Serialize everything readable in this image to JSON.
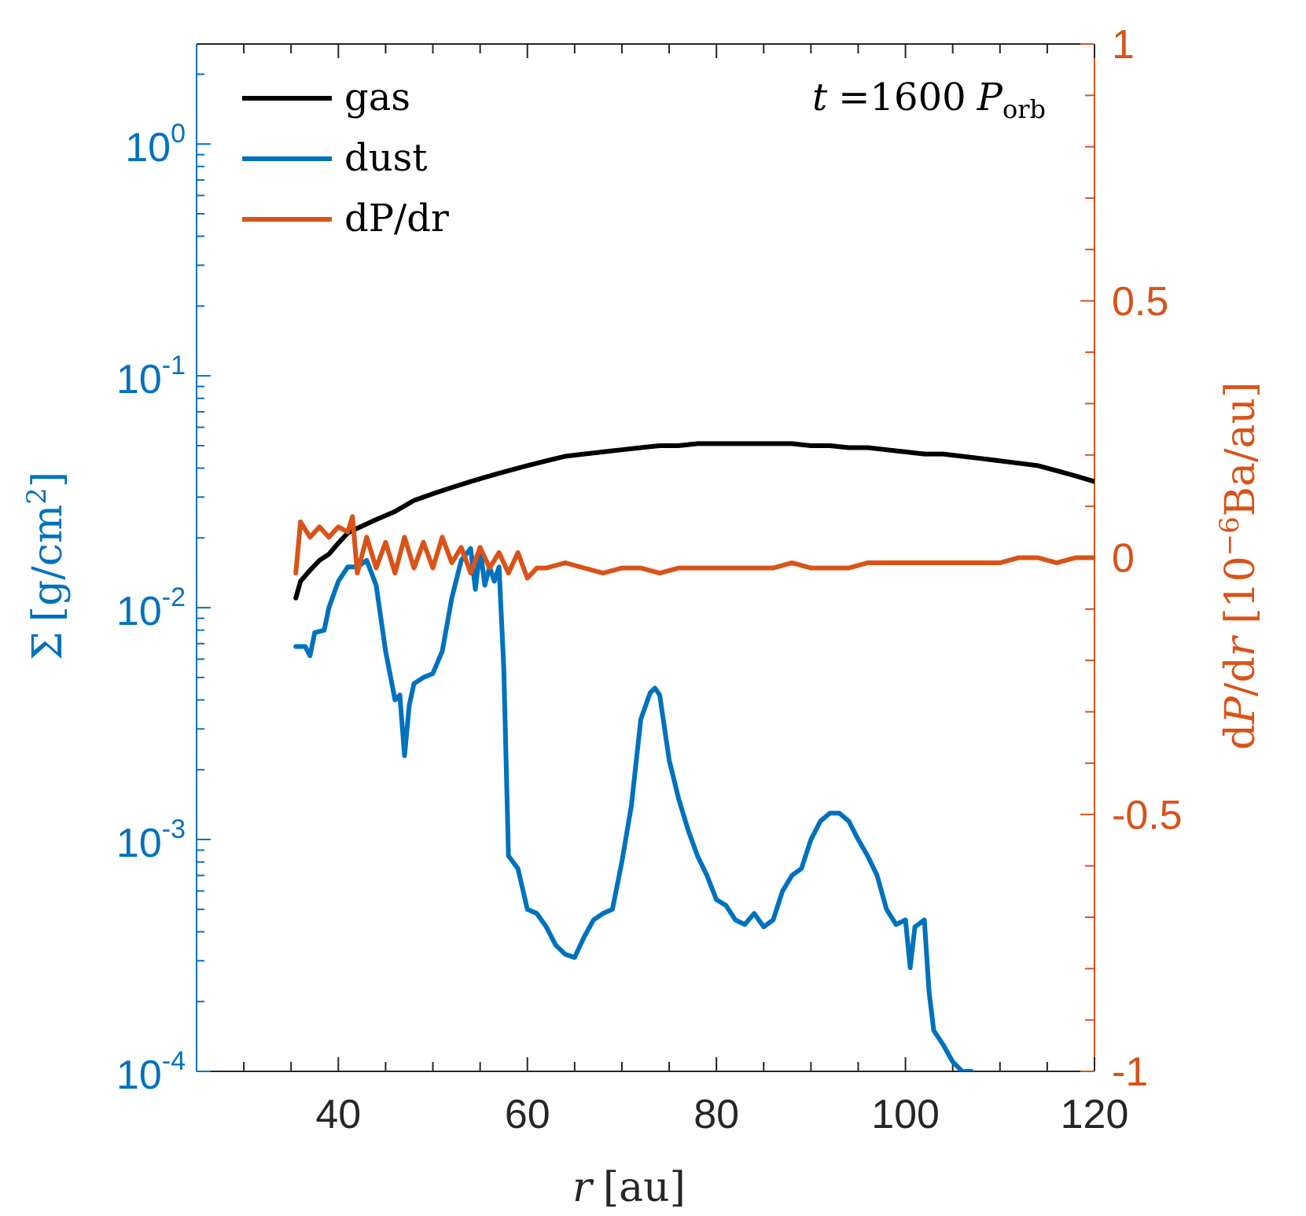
{
  "chart_data": {
    "type": "line",
    "annotation": {
      "t_symbol": "t",
      "equals": "=",
      "value": "1600",
      "p_symbol": "P",
      "p_subscript": "orb"
    },
    "xaxis": {
      "label_var": "r",
      "label_unit": "[au]",
      "range": [
        25,
        120
      ],
      "ticks": [
        40,
        60,
        80,
        100,
        120
      ],
      "tick_labels": [
        "40",
        "60",
        "80",
        "100",
        "120"
      ]
    },
    "yaxis_left": {
      "scale": "log",
      "label_symbol": "Σ",
      "label_unit_prefix": "[g/cm",
      "label_unit_sup": "2",
      "label_unit_suffix": "]",
      "range": [
        0.0001,
        2.7
      ],
      "color": "#0072BD",
      "ticks": [
        {
          "value": 1,
          "base": "10",
          "exp": "0"
        },
        {
          "value": 0.1,
          "base": "10",
          "exp": "-1"
        },
        {
          "value": 0.01,
          "base": "10",
          "exp": "-2"
        },
        {
          "value": 0.001,
          "base": "10",
          "exp": "-3"
        },
        {
          "value": 0.0001,
          "base": "10",
          "exp": "-4"
        }
      ]
    },
    "yaxis_right": {
      "scale": "linear",
      "label_prefix": "d",
      "label_var_p": "P",
      "label_mid": "/d",
      "label_var_r": "r",
      "label_unit_open": " [10",
      "label_unit_sup": "−6",
      "label_unit_close": "Ba/au]",
      "range": [
        -1,
        1
      ],
      "color": "#D95319",
      "ticks": [
        1,
        0.5,
        0,
        -0.5,
        -1
      ],
      "tick_labels": [
        "1",
        "0.5",
        "0",
        "-0.5",
        "-1"
      ]
    },
    "legend": {
      "position": "top-left",
      "entries": [
        {
          "label": "gas",
          "color": "#000000"
        },
        {
          "label": "dust",
          "color": "#0072BD"
        },
        {
          "label": "dP/dr",
          "color": "#D95319"
        }
      ]
    },
    "series": [
      {
        "name": "gas",
        "axis": "left",
        "color": "#000000",
        "x": [
          35.5,
          36,
          37,
          38,
          39,
          40,
          41,
          42,
          44,
          46,
          48,
          50,
          52,
          54,
          56,
          58,
          60,
          62,
          64,
          66,
          68,
          70,
          72,
          74,
          76,
          78,
          80,
          82,
          84,
          86,
          88,
          90,
          92,
          94,
          96,
          98,
          100,
          102,
          104,
          106,
          108,
          110,
          112,
          114,
          116,
          118,
          120
        ],
        "y": [
          0.011,
          0.013,
          0.0145,
          0.016,
          0.017,
          0.019,
          0.021,
          0.022,
          0.024,
          0.026,
          0.029,
          0.031,
          0.033,
          0.035,
          0.037,
          0.039,
          0.041,
          0.043,
          0.045,
          0.046,
          0.047,
          0.048,
          0.049,
          0.05,
          0.05,
          0.051,
          0.051,
          0.051,
          0.051,
          0.051,
          0.051,
          0.05,
          0.05,
          0.049,
          0.049,
          0.048,
          0.047,
          0.046,
          0.046,
          0.045,
          0.044,
          0.043,
          0.042,
          0.041,
          0.039,
          0.037,
          0.035
        ]
      },
      {
        "name": "dust",
        "axis": "left",
        "color": "#0072BD",
        "x": [
          35.5,
          36.5,
          37,
          37.5,
          38.5,
          39,
          40,
          41,
          42,
          43,
          44,
          45,
          46,
          46.5,
          47,
          47.5,
          48,
          49,
          50,
          51,
          52,
          53,
          54,
          54.5,
          55,
          55.5,
          56,
          56.5,
          57,
          57.5,
          58,
          59,
          60,
          61,
          62,
          63,
          64,
          65,
          66,
          67,
          68,
          69,
          70,
          71,
          72,
          73,
          73.5,
          74,
          75,
          76,
          77,
          78,
          79,
          80,
          81,
          82,
          83,
          84,
          85,
          86,
          87,
          88,
          89,
          90,
          91,
          92,
          93,
          94,
          95,
          96,
          97,
          98,
          99,
          100,
          100.5,
          101,
          102,
          102.5,
          103,
          104,
          105,
          106,
          107
        ],
        "y": [
          0.0068,
          0.0068,
          0.0062,
          0.0078,
          0.008,
          0.01,
          0.013,
          0.015,
          0.015,
          0.016,
          0.0125,
          0.0065,
          0.004,
          0.0042,
          0.0023,
          0.0038,
          0.0047,
          0.005,
          0.0052,
          0.0065,
          0.011,
          0.016,
          0.018,
          0.012,
          0.018,
          0.0125,
          0.015,
          0.013,
          0.015,
          0.0055,
          0.00085,
          0.00075,
          0.0005,
          0.00048,
          0.00042,
          0.00035,
          0.00032,
          0.00031,
          0.00038,
          0.00045,
          0.00048,
          0.0005,
          0.0008,
          0.0014,
          0.0033,
          0.0043,
          0.0045,
          0.0042,
          0.0022,
          0.0015,
          0.0011,
          0.00085,
          0.0007,
          0.00055,
          0.00052,
          0.00045,
          0.00043,
          0.00048,
          0.00042,
          0.00045,
          0.0006,
          0.0007,
          0.00075,
          0.001,
          0.0012,
          0.0013,
          0.0013,
          0.0012,
          0.001,
          0.00085,
          0.0007,
          0.0005,
          0.00043,
          0.00045,
          0.00028,
          0.00042,
          0.00045,
          0.00022,
          0.00015,
          0.00013,
          0.00011,
          0.0001,
          0.0001
        ]
      },
      {
        "name": "dP/dr",
        "axis": "right",
        "color": "#D95319",
        "x": [
          35.5,
          36,
          37,
          38,
          39,
          40,
          41,
          41.5,
          42,
          43,
          44,
          45,
          46,
          47,
          48,
          49,
          50,
          51,
          52,
          53,
          54,
          55,
          56,
          57,
          58,
          59,
          60,
          61,
          62,
          64,
          66,
          68,
          70,
          72,
          74,
          76,
          78,
          80,
          82,
          84,
          86,
          88,
          90,
          92,
          94,
          96,
          98,
          100,
          102,
          104,
          106,
          108,
          110,
          112,
          114,
          116,
          118,
          120
        ],
        "y": [
          -0.03,
          0.07,
          0.04,
          0.06,
          0.04,
          0.06,
          0.05,
          0.08,
          -0.03,
          0.04,
          -0.02,
          0.03,
          -0.03,
          0.04,
          -0.02,
          0.03,
          -0.02,
          0.04,
          -0.01,
          0.02,
          -0.03,
          0.02,
          -0.02,
          0.01,
          -0.03,
          0.01,
          -0.04,
          -0.02,
          -0.02,
          -0.01,
          -0.02,
          -0.03,
          -0.02,
          -0.02,
          -0.03,
          -0.02,
          -0.02,
          -0.02,
          -0.02,
          -0.02,
          -0.02,
          -0.01,
          -0.02,
          -0.02,
          -0.02,
          -0.01,
          -0.01,
          -0.01,
          -0.01,
          -0.01,
          -0.01,
          -0.01,
          -0.01,
          0.0,
          0.0,
          -0.01,
          0.0,
          0.0
        ]
      }
    ]
  }
}
